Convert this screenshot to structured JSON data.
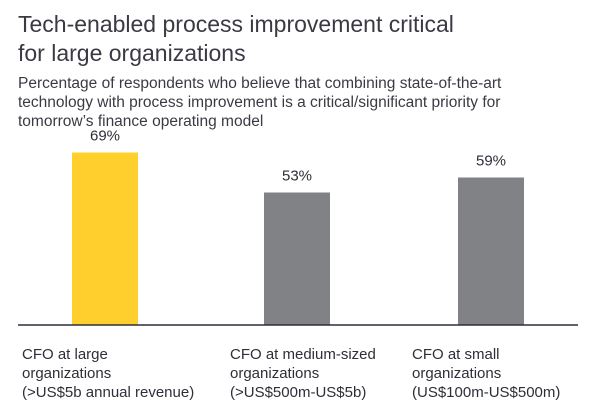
{
  "title_line1": "Tech-enabled process improvement critical",
  "title_line2": "for large organizations",
  "subtitle_line1": "Percentage of respondents who believe that combining state-of-the-art",
  "subtitle_line2": "technology with process improvement is a critical/significant priority for",
  "subtitle_line3": "tomorrow’s finance operating model",
  "colors": {
    "highlight": "#ffd02d",
    "bar": "#808285",
    "axis": "#2e2e38",
    "text": "#2e2e38"
  },
  "chart_data": {
    "type": "bar",
    "title": "Tech-enabled process improvement critical for large organizations",
    "subtitle": "Percentage of respondents who believe that combining state-of-the-art technology with process improvement is a critical/significant priority for tomorrow’s finance operating model",
    "categories": [
      [
        "CFO at large",
        "organizations",
        "(>US$5b annual revenue)"
      ],
      [
        "CFO at medium-sized",
        "organizations",
        "(>US$500m-US$5b)"
      ],
      [
        "CFO at small",
        "organizations",
        "(US$100m-US$500m)"
      ]
    ],
    "values": [
      69,
      53,
      59
    ],
    "value_labels": [
      "69%",
      "53%",
      "59%"
    ],
    "highlight_index": 0,
    "unit": "%",
    "ylim": [
      0,
      100
    ],
    "xlabel": "",
    "ylabel": "",
    "grid": false,
    "legend": "none"
  }
}
